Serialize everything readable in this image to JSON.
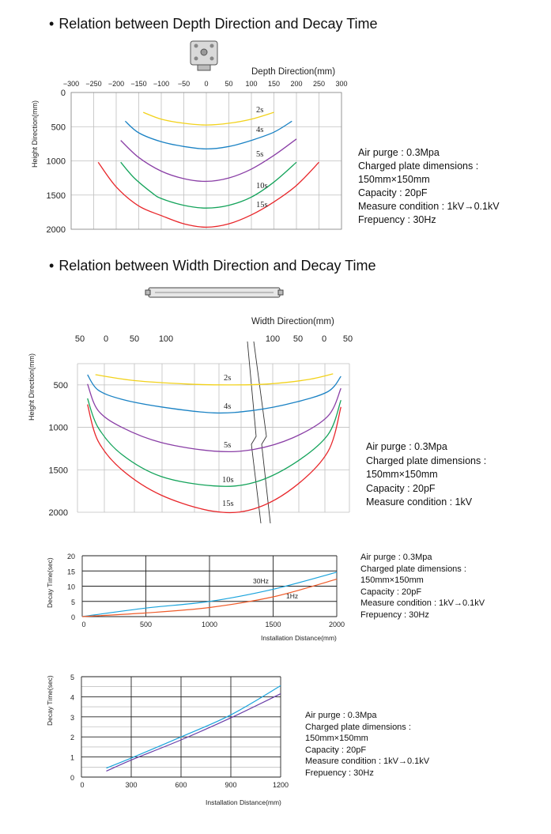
{
  "section1": {
    "heading": "Relation between Depth Direction and Decay Time",
    "notes": [
      "Air purge : 0.3Mpa",
      "Charged plate dimensions :",
      "150mm×150mm",
      "Capacity : 20pF",
      "Measure condition : 1kV→0.1kV",
      "Frepuency : 30Hz"
    ]
  },
  "section2": {
    "heading": "Relation between Width Direction and Decay Time",
    "notes": [
      "Air purge : 0.3Mpa",
      "Charged plate dimensions :",
      "150mm×150mm",
      "Capacity : 20pF",
      "Measure condition : 1kV"
    ]
  },
  "section3": {
    "notes": [
      "Air purge : 0.3Mpa",
      "Charged plate dimensions :",
      "150mm×150mm",
      "Capacity : 20pF",
      "Measure condition : 1kV→0.1kV",
      "Frepuency : 30Hz"
    ]
  },
  "section4": {
    "notes": [
      "Air purge : 0.3Mpa",
      "Charged plate dimensions :",
      "150mm×150mm",
      "Capacity : 20pF",
      "Measure condition : 1kV→0.1kV",
      "Frepuency : 30Hz"
    ]
  },
  "colors": {
    "2s": "#f2d21b",
    "4s": "#1a82c4",
    "5s": "#8a3fa6",
    "10s": "#13a35a",
    "15s": "#e8262a",
    "cyan": "#1aa3dc",
    "orange": "#ef5a28",
    "purple": "#6a3fa8"
  },
  "chart_data": [
    {
      "type": "line",
      "xlabel": "Depth Direction(mm)",
      "ylabel": "Height Direction(mm)",
      "xlim": [
        -300,
        300
      ],
      "ylim": [
        2000,
        0
      ],
      "x_ticks": [
        "−300",
        "−250",
        "−200",
        "−150",
        "−100",
        "−50",
        "0",
        "50",
        "100",
        "150",
        "200",
        "250",
        "300"
      ],
      "y_ticks": [
        "0",
        "500",
        "1000",
        "1500",
        "2000"
      ],
      "series": [
        {
          "name": "2s",
          "color": "2s",
          "x": [
            -140,
            -100,
            -50,
            0,
            50,
            100,
            150
          ],
          "y": [
            290,
            390,
            450,
            475,
            450,
            390,
            290
          ]
        },
        {
          "name": "4s",
          "color": "4s",
          "x": [
            -180,
            -150,
            -100,
            -50,
            0,
            50,
            100,
            150,
            190
          ],
          "y": [
            420,
            590,
            720,
            790,
            825,
            790,
            700,
            580,
            420
          ]
        },
        {
          "name": "5s",
          "color": "5s",
          "x": [
            -190,
            -150,
            -100,
            -50,
            0,
            50,
            100,
            150,
            200
          ],
          "y": [
            700,
            950,
            1150,
            1260,
            1300,
            1250,
            1120,
            920,
            680
          ]
        },
        {
          "name": "10s",
          "color": "10s",
          "x": [
            -190,
            -160,
            -120,
            -100,
            -50,
            0,
            50,
            100,
            150,
            200
          ],
          "y": [
            1020,
            1250,
            1470,
            1550,
            1650,
            1690,
            1650,
            1530,
            1310,
            1020
          ]
        },
        {
          "name": "15s",
          "color": "15s",
          "x": [
            -240,
            -200,
            -150,
            -100,
            -50,
            0,
            50,
            100,
            150,
            200,
            250
          ],
          "y": [
            1020,
            1380,
            1660,
            1800,
            1920,
            1970,
            1920,
            1790,
            1600,
            1360,
            1020
          ]
        }
      ],
      "labels": [
        "2s",
        "4s",
        "5s",
        "10s",
        "15s"
      ]
    },
    {
      "type": "line",
      "xlabel": "Width Direction(mm)",
      "ylabel": "Height Direction(mm)",
      "x_ticks_left": [
        "50",
        "0",
        "50",
        "100"
      ],
      "x_ticks_right": [
        "100",
        "50",
        "0",
        "50"
      ],
      "y_ticks": [
        "500",
        "1000",
        "1500",
        "2000"
      ],
      "series": [
        {
          "name": "2s",
          "color": "2s",
          "x": [
            0.05,
            0.2,
            0.4,
            0.55,
            0.7,
            0.85,
            0.95
          ],
          "y": [
            380,
            450,
            490,
            500,
            490,
            440,
            370
          ]
        },
        {
          "name": "4s",
          "color": "4s",
          "x": [
            0.02,
            0.06,
            0.15,
            0.3,
            0.5,
            0.65,
            0.8,
            0.93,
            0.98
          ],
          "y": [
            380,
            560,
            670,
            760,
            830,
            800,
            710,
            580,
            400
          ]
        },
        {
          "name": "5s",
          "color": "5s",
          "x": [
            0.02,
            0.06,
            0.15,
            0.3,
            0.5,
            0.65,
            0.8,
            0.93,
            0.98
          ],
          "y": [
            490,
            800,
            1000,
            1180,
            1280,
            1260,
            1120,
            870,
            540
          ]
        },
        {
          "name": "10s",
          "color": "10s",
          "x": [
            0.02,
            0.06,
            0.15,
            0.3,
            0.5,
            0.65,
            0.8,
            0.93,
            0.98
          ],
          "y": [
            660,
            1000,
            1320,
            1580,
            1690,
            1650,
            1430,
            1090,
            680
          ]
        },
        {
          "name": "15s",
          "color": "15s",
          "x": [
            0.02,
            0.06,
            0.15,
            0.3,
            0.5,
            0.65,
            0.8,
            0.93,
            0.98
          ],
          "y": [
            730,
            1160,
            1500,
            1800,
            1990,
            1960,
            1710,
            1290,
            760
          ]
        }
      ],
      "labels": [
        "2s",
        "4s",
        "5s",
        "10s",
        "15s"
      ]
    },
    {
      "type": "line",
      "xlabel": "Installation Distance(mm)",
      "ylabel": "Decay Time(sec)",
      "xlim": [
        0,
        2000
      ],
      "ylim": [
        0,
        20
      ],
      "x_ticks": [
        "0",
        "500",
        "1000",
        "1500",
        "2000"
      ],
      "y_ticks": [
        "0",
        "5",
        "10",
        "15",
        "20"
      ],
      "series": [
        {
          "name": "30Hz",
          "color": "cyan",
          "x": [
            0,
            500,
            1000,
            1500,
            2000
          ],
          "y": [
            0,
            2.8,
            5.0,
            9.0,
            14.6
          ]
        },
        {
          "name": "1Hz",
          "color": "orange",
          "x": [
            0,
            500,
            1000,
            1500,
            2000
          ],
          "y": [
            0,
            1.2,
            3.0,
            6.5,
            12.3
          ]
        }
      ]
    },
    {
      "type": "line",
      "xlabel": "Installation Distance(mm)",
      "ylabel": "Decay Time(sec)",
      "xlim": [
        0,
        1200
      ],
      "ylim": [
        0,
        5
      ],
      "x_ticks": [
        "0",
        "300",
        "600",
        "900",
        "1200"
      ],
      "y_ticks": [
        "0",
        "1",
        "2",
        "3",
        "4",
        "5"
      ],
      "series": [
        {
          "color": "cyan",
          "x": [
            150,
            300,
            600,
            900,
            1200
          ],
          "y": [
            0.45,
            0.95,
            2.0,
            3.1,
            4.55
          ]
        },
        {
          "color": "purple",
          "x": [
            150,
            300,
            600,
            900,
            1200
          ],
          "y": [
            0.3,
            0.85,
            1.85,
            2.95,
            4.15
          ]
        }
      ]
    }
  ]
}
